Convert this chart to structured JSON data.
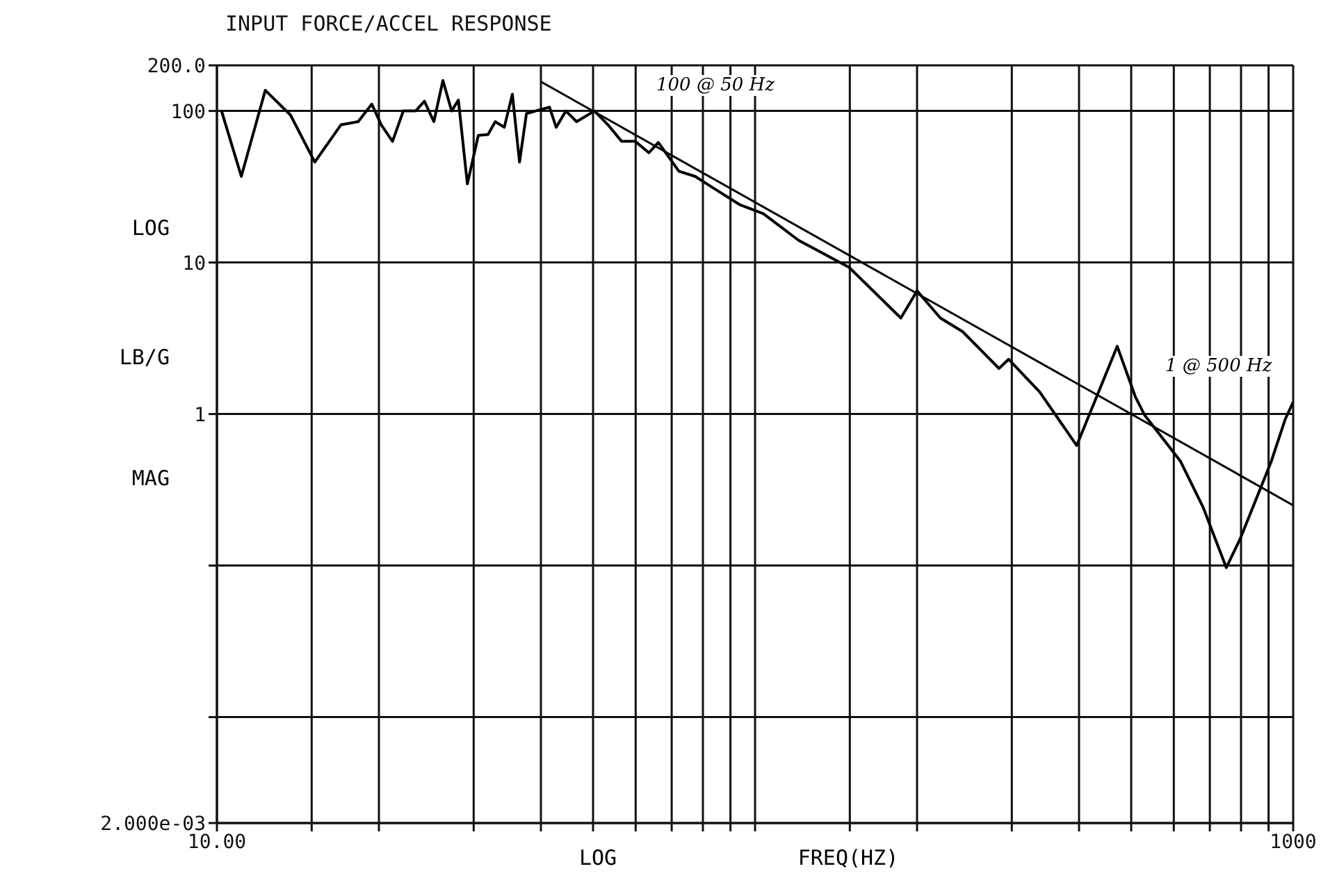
{
  "chart_data": {
    "type": "line",
    "title": "INPUT FORCE/ACCEL RESPONSE",
    "xlabel": "LOG FREQ(HZ)",
    "ylabel": "LOG LB/G MAG",
    "log": "xy",
    "grid": true,
    "marker": "none",
    "line_style": "solid",
    "xlim": [
      10,
      1000
    ],
    "xticks": [
      {
        "value": 10,
        "label": "10.00"
      },
      {
        "value": 15,
        "label": null
      },
      {
        "value": 20,
        "label": null
      },
      {
        "value": 30,
        "label": null
      },
      {
        "value": 40,
        "label": null
      },
      {
        "value": 50,
        "label": null
      },
      {
        "value": 60,
        "label": null
      },
      {
        "value": 70,
        "label": null
      },
      {
        "value": 80,
        "label": null
      },
      {
        "value": 90,
        "label": null
      },
      {
        "value": 100,
        "label": null
      },
      {
        "value": 150,
        "label": null
      },
      {
        "value": 200,
        "label": null
      },
      {
        "value": 300,
        "label": null
      },
      {
        "value": 400,
        "label": null
      },
      {
        "value": 500,
        "label": null
      },
      {
        "value": 600,
        "label": null
      },
      {
        "value": 700,
        "label": null
      },
      {
        "value": 800,
        "label": null
      },
      {
        "value": 900,
        "label": null
      },
      1000
    ],
    "ylim": [
      0.002,
      200
    ],
    "yticks": [
      {
        "value": 0.002,
        "label": "2.000e-03"
      },
      {
        "value": 0.01,
        "label": null
      },
      {
        "value": 0.1,
        "label": null
      },
      1,
      10,
      100,
      {
        "value": 200,
        "label": "200.0"
      }
    ],
    "annotations": [
      "100 @ 50 Hz",
      "1 @ 500 Hz"
    ],
    "series": [
      {
        "color": "#000000",
        "x": [
          10.2,
          11.1,
          12.3,
          13.7,
          15.2,
          17.0,
          18.3,
          19.4,
          20.2,
          21.2,
          22.2,
          23.4,
          24.3,
          25.3,
          26.3,
          27.3,
          28.1,
          29.2,
          30.6,
          31.9,
          32.9,
          34.2,
          35.4,
          36.5,
          37.6,
          39.1,
          41.5,
          42.7,
          44.5,
          46.6,
          50.3,
          53.3,
          56.5,
          59.9,
          63.5,
          66.1,
          72.2,
          77.4,
          84.9,
          93.8,
          103.6,
          120.5,
          149.5,
          186.6,
          200,
          221,
          243,
          284,
          296,
          338,
          396,
          471,
          509,
          530,
          617,
          681,
          751,
          797,
          911,
          966,
          1000
        ],
        "values": [
          100,
          37,
          137,
          94,
          46,
          81,
          85,
          111,
          81,
          63,
          100,
          100,
          116,
          85,
          159,
          100,
          118,
          33,
          69,
          70,
          85,
          78,
          129,
          46,
          96,
          100,
          106,
          78,
          100,
          85,
          100,
          81,
          63,
          63,
          53,
          62,
          40,
          37,
          30,
          24,
          21,
          14,
          9.3,
          4.3,
          6.5,
          4.3,
          3.5,
          2.0,
          2.3,
          1.4,
          0.62,
          2.8,
          1.3,
          0.98,
          0.49,
          0.24,
          0.097,
          0.15,
          0.49,
          0.92,
          1.2
        ]
      },
      {
        "color": "#000000",
        "x": [
          40,
          1000
        ],
        "values": [
          156,
          0.25
        ]
      }
    ]
  }
}
